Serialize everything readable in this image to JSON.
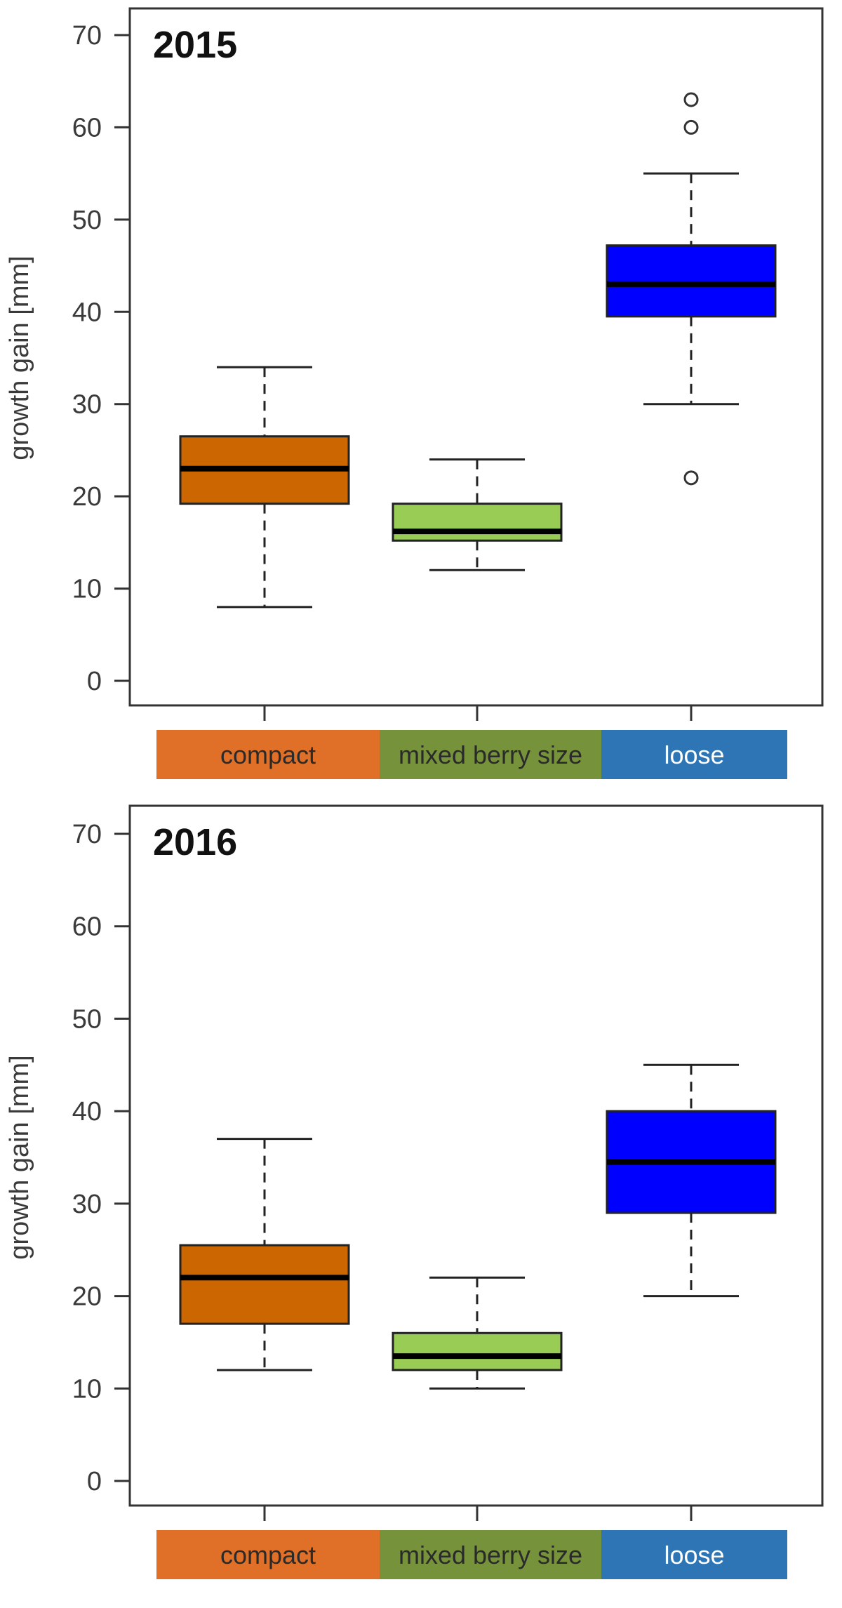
{
  "chart_data": [
    {
      "type": "box",
      "title": "2015",
      "ylabel": "growth gain [mm]",
      "ylim": [
        0,
        70
      ],
      "yticks": [
        0,
        10,
        20,
        30,
        40,
        50,
        60,
        70
      ],
      "categories": [
        "compact",
        "mixed berry size",
        "loose"
      ],
      "category_colors": [
        "#e07028",
        "#76933c",
        "#2e75b6"
      ],
      "box_colors": [
        "#cc6600",
        "#99cc55",
        "#0000ff"
      ],
      "series": [
        {
          "category": "compact",
          "whisker_low": 8,
          "q1": 19.2,
          "median": 23,
          "q3": 26.5,
          "whisker_high": 34,
          "outliers": []
        },
        {
          "category": "mixed berry size",
          "whisker_low": 12,
          "q1": 15.2,
          "median": 16.2,
          "q3": 19.2,
          "whisker_high": 24,
          "outliers": []
        },
        {
          "category": "loose",
          "whisker_low": 30,
          "q1": 39.5,
          "median": 43,
          "q3": 47.2,
          "whisker_high": 55,
          "outliers": [
            22,
            60,
            63
          ]
        }
      ]
    },
    {
      "type": "box",
      "title": "2016",
      "ylabel": "growth gain [mm]",
      "ylim": [
        0,
        70
      ],
      "yticks": [
        0,
        10,
        20,
        30,
        40,
        50,
        60,
        70
      ],
      "categories": [
        "compact",
        "mixed berry size",
        "loose"
      ],
      "category_colors": [
        "#e07028",
        "#76933c",
        "#2e75b6"
      ],
      "box_colors": [
        "#cc6600",
        "#99cc55",
        "#0000ff"
      ],
      "series": [
        {
          "category": "compact",
          "whisker_low": 12,
          "q1": 17,
          "median": 22,
          "q3": 25.5,
          "whisker_high": 37,
          "outliers": []
        },
        {
          "category": "mixed berry size",
          "whisker_low": 10,
          "q1": 12,
          "median": 13.5,
          "q3": 16,
          "whisker_high": 22,
          "outliers": []
        },
        {
          "category": "loose",
          "whisker_low": 20,
          "q1": 29,
          "median": 34.5,
          "q3": 40,
          "whisker_high": 45,
          "outliers": []
        }
      ]
    }
  ]
}
